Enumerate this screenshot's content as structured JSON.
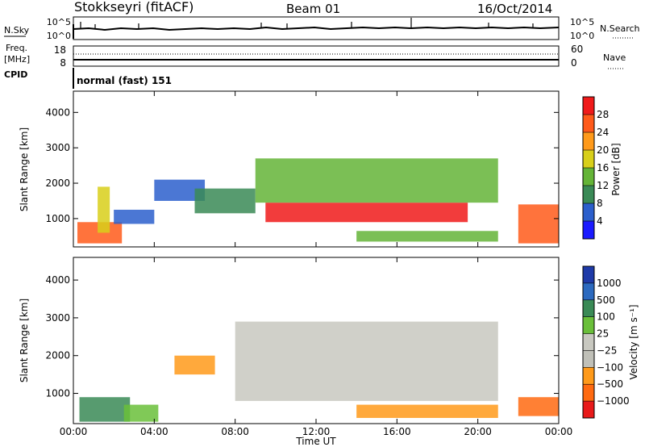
{
  "header": {
    "station": "Stokkseyri (fitACF)",
    "beam": "Beam 01",
    "date": "16/Oct/2014"
  },
  "nsky_panel": {
    "label": "N.Sky",
    "left_ticks": [
      "10^5",
      "10^0"
    ],
    "right_ticks": [
      "10^5",
      "10^0"
    ],
    "right_label": "N.Search"
  },
  "freq_panel": {
    "label_line1": "Freq.",
    "label_line2": "[MHz]",
    "left_ticks": [
      "18",
      "8"
    ],
    "right_ticks": [
      "60",
      "0"
    ],
    "right_label": "Nave"
  },
  "cpid_panel": {
    "label": "CPID",
    "mode_text": "normal (fast) 151"
  },
  "x_axis": {
    "label": "Time UT",
    "ticks": [
      "00:00",
      "04:00",
      "08:00",
      "12:00",
      "16:00",
      "20:00",
      "00:00"
    ]
  },
  "colors": {
    "power": [
      "#1a1aff",
      "#2c5fcc",
      "#3a8a56",
      "#64b437",
      "#d8cf1a",
      "#ff9a1a",
      "#ff5a1a",
      "#f01a1a"
    ],
    "velocity": [
      "#1e3aa8",
      "#2c6abf",
      "#3a8a56",
      "#6abf3a",
      "#c8c8c0",
      "#c0c0b8",
      "#ff9a1a",
      "#ff6a10",
      "#e81a1a"
    ]
  },
  "chart_data": [
    {
      "type": "heatmap",
      "name": "power",
      "ylabel": "Slant Range [km]",
      "xlabel": "",
      "ylim": [
        200,
        4600
      ],
      "y_ticks": [
        "1000",
        "2000",
        "3000",
        "4000"
      ],
      "y_tick_values": [
        1000,
        2000,
        3000,
        4000
      ],
      "colorbar_label": "Power [dB]",
      "colorbar_ticks": [
        "4",
        "8",
        "12",
        "16",
        "20",
        "24",
        "28"
      ],
      "features": [
        {
          "t0": 0.2,
          "t1": 2.4,
          "r0": 300,
          "r1": 900,
          "level": 6
        },
        {
          "t0": 1.2,
          "t1": 1.8,
          "r0": 600,
          "r1": 1900,
          "level": 4
        },
        {
          "t0": 2.0,
          "t1": 4.0,
          "r0": 850,
          "r1": 1250,
          "level": 1
        },
        {
          "t0": 4.0,
          "t1": 6.5,
          "r0": 1500,
          "r1": 2100,
          "level": 1
        },
        {
          "t0": 6.0,
          "t1": 9.0,
          "r0": 1150,
          "r1": 1850,
          "level": 2
        },
        {
          "t0": 9.5,
          "t1": 19.5,
          "r0": 900,
          "r1": 1450,
          "level": 7
        },
        {
          "t0": 9.0,
          "t1": 21.0,
          "r0": 1450,
          "r1": 2700,
          "level": 3
        },
        {
          "t0": 14.0,
          "t1": 21.0,
          "r0": 350,
          "r1": 650,
          "level": 3
        },
        {
          "t0": 22.0,
          "t1": 24.0,
          "r0": 300,
          "r1": 1400,
          "level": 6
        }
      ]
    },
    {
      "type": "heatmap",
      "name": "velocity",
      "ylabel": "Slant Range [km]",
      "xlabel": "Time UT",
      "ylim": [
        200,
        4600
      ],
      "y_ticks": [
        "1000",
        "2000",
        "3000",
        "4000"
      ],
      "y_tick_values": [
        1000,
        2000,
        3000,
        4000
      ],
      "colorbar_label": "Velocity [m s⁻¹]",
      "colorbar_ticks": [
        "1000",
        "500",
        "100",
        "25",
        "−25",
        "−100",
        "−500",
        "−1000"
      ],
      "features": [
        {
          "t0": 0.3,
          "t1": 2.8,
          "r0": 250,
          "r1": 900,
          "level": 2
        },
        {
          "t0": 2.5,
          "t1": 4.2,
          "r0": 250,
          "r1": 700,
          "level": 3
        },
        {
          "t0": 5.0,
          "t1": 7.0,
          "r0": 1500,
          "r1": 2000,
          "level": 6
        },
        {
          "t0": 8.0,
          "t1": 21.0,
          "r0": 800,
          "r1": 2900,
          "level": 4
        },
        {
          "t0": 14.0,
          "t1": 21.0,
          "r0": 350,
          "r1": 700,
          "level": 6
        },
        {
          "t0": 22.0,
          "t1": 24.0,
          "r0": 400,
          "r1": 900,
          "level": 7
        }
      ]
    }
  ]
}
